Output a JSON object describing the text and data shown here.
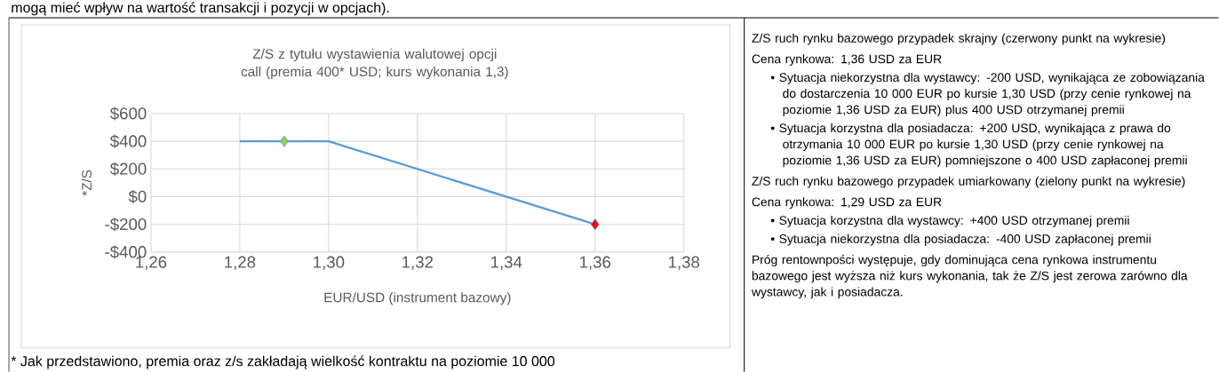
{
  "chart_data": {
    "type": "line",
    "title": "Z/S z tytułu wystawienia walutowej opcji call (premia 400* USD; kurs wykonania 1,3)",
    "xlabel": "EUR/USD (instrument bazowy)",
    "ylabel": "*Z/S",
    "series": [
      {
        "color": "#5b9bd5",
        "x": [
          1.28,
          1.3,
          1.36
        ],
        "values": [
          400,
          400,
          -200
        ],
        "marker": "none"
      },
      {
        "type": "scatter",
        "color": "#92d050",
        "x": [
          1.29
        ],
        "values": [
          400
        ],
        "marker": "diamond"
      },
      {
        "type": "scatter",
        "color": "#ff0000",
        "x": [
          1.36
        ],
        "values": [
          -200
        ],
        "marker": "diamond"
      }
    ],
    "xlim": [
      1.26,
      1.38
    ],
    "ylim": [
      -400,
      600
    ],
    "xticks": [
      {
        "value": 1.26,
        "label": "1,26"
      },
      {
        "value": 1.28,
        "label": "1,28"
      },
      {
        "value": 1.3,
        "label": "1,30"
      },
      {
        "value": 1.32,
        "label": "1,32"
      },
      {
        "value": 1.34,
        "label": "1,34"
      },
      {
        "value": 1.36,
        "label": "1,36"
      },
      {
        "value": 1.38,
        "label": "1,38"
      }
    ],
    "yticks": [
      {
        "value": -400,
        "label": "-$400"
      },
      {
        "value": -200,
        "label": "-$200"
      },
      {
        "value": 0,
        "label": "$0"
      },
      {
        "value": 200,
        "label": "$200"
      },
      {
        "value": 400,
        "label": "$400"
      },
      {
        "value": 600,
        "label": "$600"
      }
    ],
    "grid": true,
    "annotations": [
      "mogą mieć wpływ na wartość transakcji i pozycji w opcjach).",
      "* Jak przedstawiono, premia oraz z/s zakładają wielkość kontraktu na poziomie 10 000",
      "Z/S ruch rynku bazowego przypadek skrajny (czerwony punkt na wykresie)",
      "Cena rynkowa: 1,36 USD za EUR",
      "• Sytuacja niekorzystna dla wystawcy: -200 USD, wynikająca ze zobowiązania do dostarczenia 10 000 EUR po kursie 1,30 USD (przy cenie rynkowej na poziomie 1,36 USD za EUR) plus 400 USD otrzymanej premii",
      "• Sytuacja korzystna dla posiadacza: +200 USD, wynikająca z prawa do otrzymania 10 000 EUR po kursie 1,30 USD (przy cenie rynkowej na poziomie 1,36 USD za EUR) pomniejszone o 400 USD zapłaconej premii",
      "Z/S ruch rynku bazowego przypadek umiarkowany (zielony punkt na wykresie)",
      "Cena rynkowa: 1,29 USD za EUR",
      "• Sytuacja korzystna dla wystawcy: +400 USD otrzymanej premii",
      "• Sytuacja niekorzystna dla posiadacza: -400 USD zapłaconej premii",
      "Próg rentownpości występuje, gdy dominująca cena rynkowa instrumentu bazowego jest wyższa niż kurs wykonania, tak że Z/S jest zerowa zarówno dla wystawcy, jak i posiadacza."
    ]
  }
}
